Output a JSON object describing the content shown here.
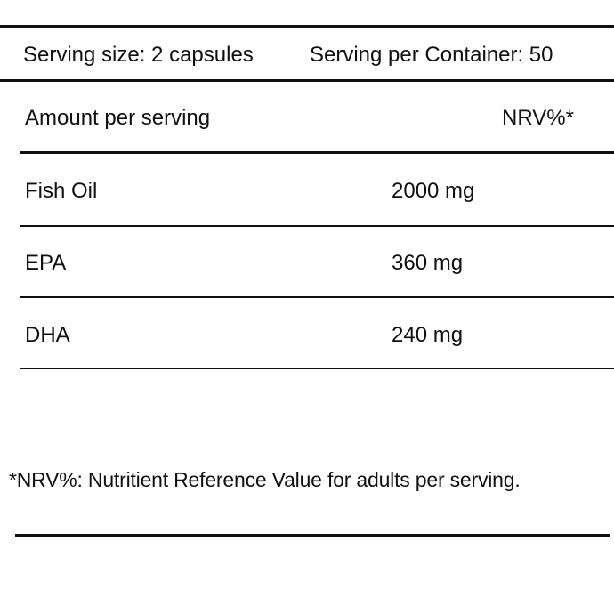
{
  "header": {
    "serving_size": "Serving size: 2 capsules",
    "servings_per_container": "Serving per Container: 50"
  },
  "table": {
    "amount_header": "Amount per serving",
    "nrv_header": "NRV%*",
    "rows": [
      {
        "name": "Fish Oil",
        "amount": "2000 mg"
      },
      {
        "name": "EPA",
        "amount": "360 mg"
      },
      {
        "name": "DHA",
        "amount": "240 mg"
      }
    ]
  },
  "footnote": "*NRV%: Nutritient Reference Value for adults per serving."
}
